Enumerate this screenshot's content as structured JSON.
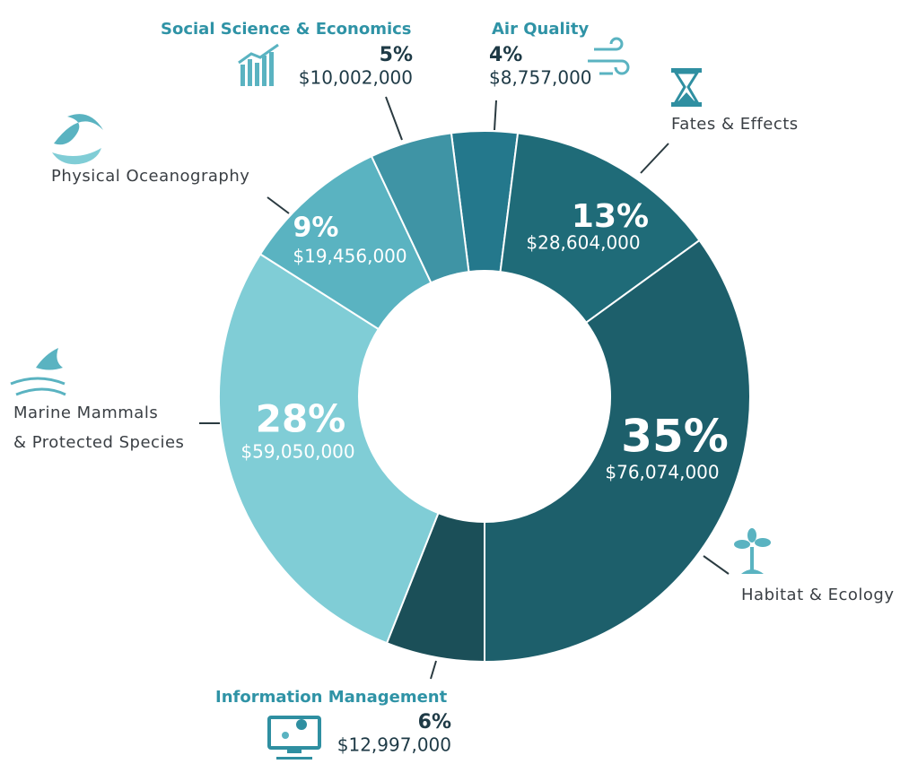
{
  "chart_data": {
    "type": "donut",
    "categories": [
      "Air Quality",
      "Fates & Effects",
      "Habitat & Ecology",
      "Information Management",
      "Marine Mammals\n& Protected Species",
      "Physical Oceanography",
      "Social Science & Economics"
    ],
    "values": [
      4,
      13,
      35,
      6,
      28,
      9,
      5
    ],
    "value_labels": [
      "4%",
      "13%",
      "35%",
      "6%",
      "28%",
      "9%",
      "5%"
    ],
    "amounts": [
      "$8,757,000",
      "$28,604,000",
      "$76,074,000",
      "$12,997,000",
      "$59,050,000",
      "$19,456,000",
      "$10,002,000"
    ],
    "colors": [
      "#24788c",
      "#1f6b78",
      "#1d5f6b",
      "#1b4f58",
      "#80cdd6",
      "#5ab3c1",
      "#3f94a5"
    ]
  }
}
